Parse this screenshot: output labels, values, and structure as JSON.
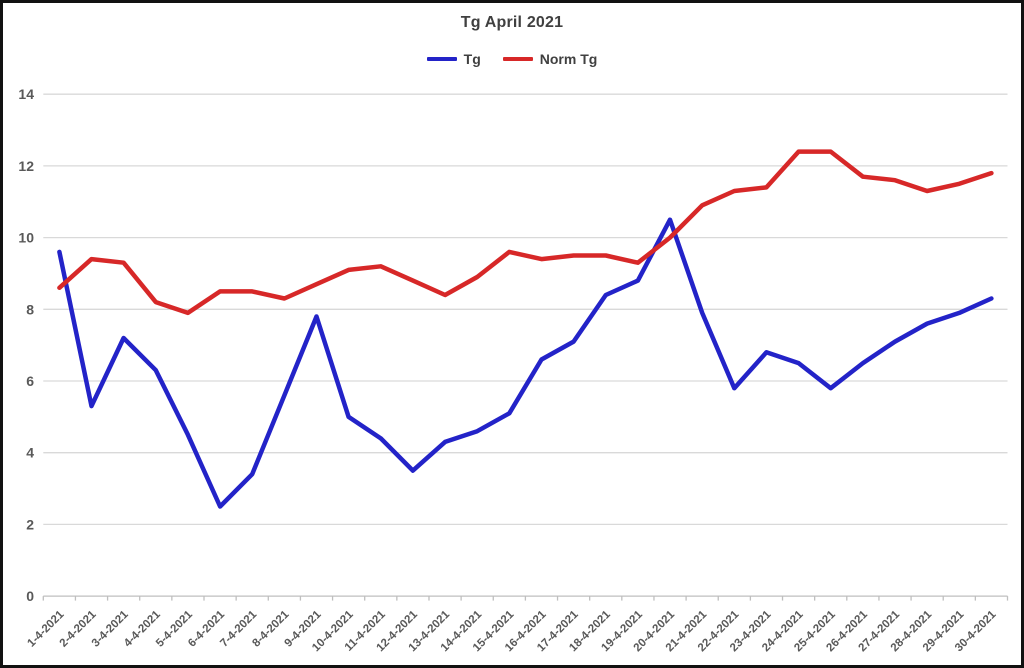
{
  "window": {
    "background": "#ffffff",
    "border_color": "#111111"
  },
  "chart_data": {
    "type": "line",
    "title": "Tg April 2021",
    "title_color": "#404040",
    "legend_position": "top",
    "grid": true,
    "xlabel": "",
    "ylabel": "",
    "ylim": [
      0,
      14
    ],
    "ytick_step": 2,
    "ytick_labels": [
      "0",
      "2",
      "4",
      "6",
      "8",
      "10",
      "12",
      "14"
    ],
    "axis_label_color": "#595959",
    "gridline_color": "#d9d9d9",
    "axis_line_color": "#bfbfbf",
    "categories": [
      "1-4-2021",
      "2-4-2021",
      "3-4-2021",
      "4-4-2021",
      "5-4-2021",
      "6-4-2021",
      "7-4-2021",
      "8-4-2021",
      "9-4-2021",
      "10-4-2021",
      "11-4-2021",
      "12-4-2021",
      "13-4-2021",
      "14-4-2021",
      "15-4-2021",
      "16-4-2021",
      "17-4-2021",
      "18-4-2021",
      "19-4-2021",
      "20-4-2021",
      "21-4-2021",
      "22-4-2021",
      "23-4-2021",
      "24-4-2021",
      "25-4-2021",
      "26-4-2021",
      "27-4-2021",
      "28-4-2021",
      "29-4-2021",
      "30-4-2021"
    ],
    "series": [
      {
        "name": "Tg",
        "color": "#2323c8",
        "values": [
          9.6,
          5.3,
          7.2,
          6.3,
          4.5,
          2.5,
          3.4,
          5.6,
          7.8,
          5.0,
          4.4,
          3.5,
          4.3,
          4.6,
          5.1,
          6.6,
          7.1,
          8.4,
          8.8,
          10.5,
          7.9,
          5.8,
          6.8,
          6.5,
          5.8,
          6.5,
          7.1,
          7.6,
          7.9,
          8.3
        ]
      },
      {
        "name": "Norm Tg",
        "color": "#d72828",
        "values": [
          8.6,
          9.4,
          9.3,
          8.2,
          7.9,
          8.5,
          8.5,
          8.3,
          8.7,
          9.1,
          9.2,
          8.8,
          8.4,
          8.9,
          9.6,
          9.4,
          9.5,
          9.5,
          9.3,
          10.0,
          10.9,
          11.3,
          11.4,
          12.4,
          12.4,
          11.7,
          11.6,
          11.3,
          11.5,
          11.8
        ]
      }
    ]
  }
}
